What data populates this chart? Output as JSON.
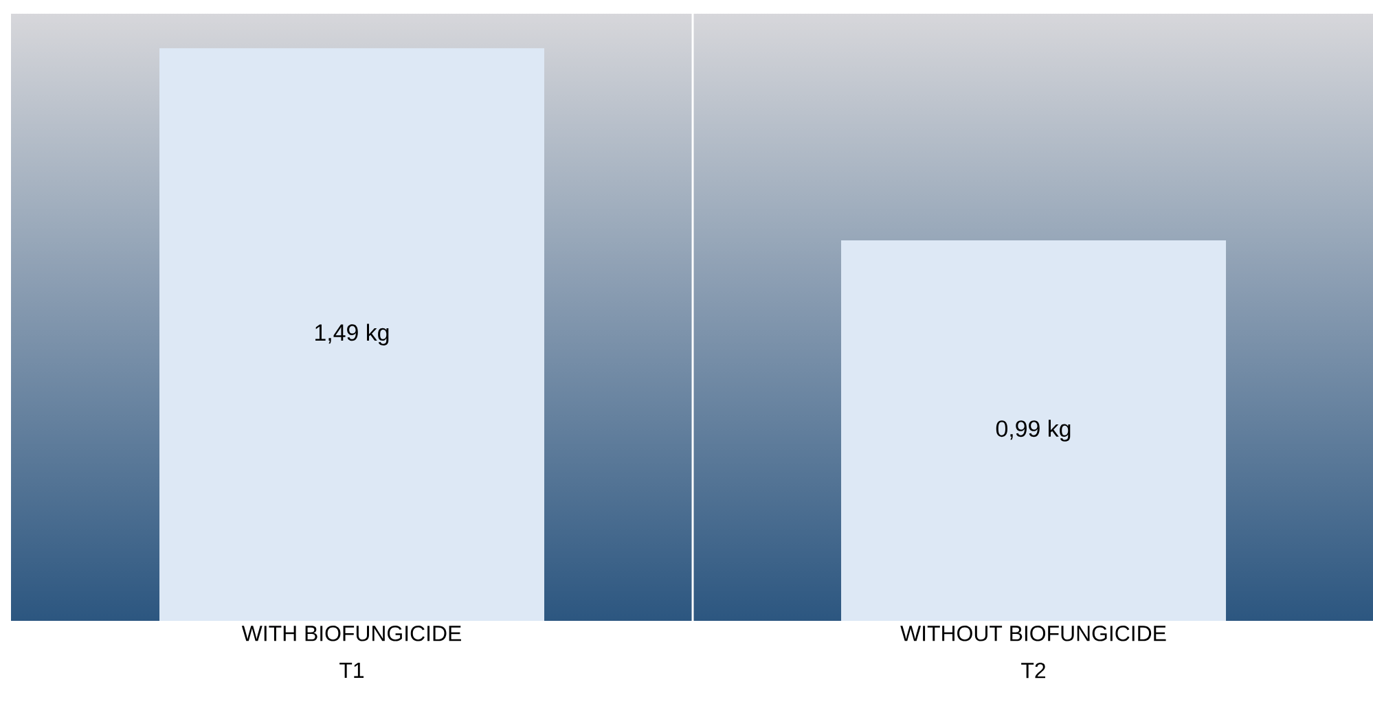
{
  "chart_data": {
    "type": "bar",
    "categories": [
      "WITH BIOFUNGICIDE",
      "WITHOUT BIOFUNGICIDE"
    ],
    "values": [
      1.49,
      0.99
    ],
    "value_labels": [
      "1,49 kg",
      "0,99 kg"
    ],
    "color": "#dde8f5",
    "annotations": [
      "T1",
      "T2"
    ],
    "ylim": [
      0,
      1.58
    ],
    "tick_labels": "x"
  }
}
